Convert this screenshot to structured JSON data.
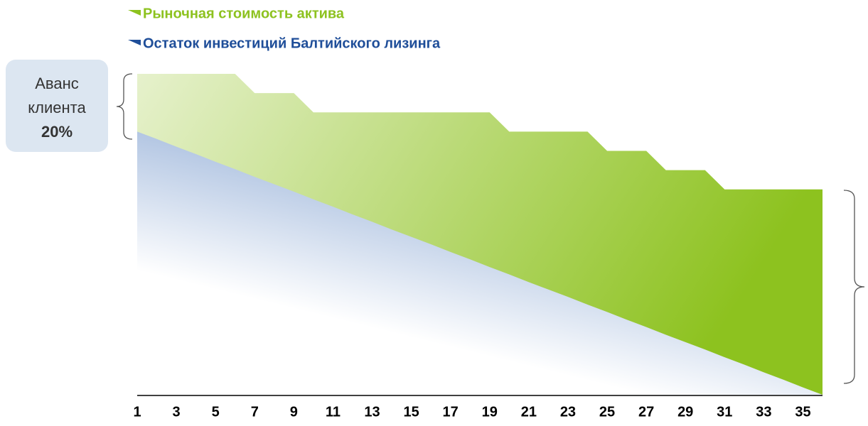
{
  "chart_data": {
    "type": "area",
    "categories": [
      1,
      null,
      3,
      null,
      5,
      null,
      7,
      null,
      9,
      null,
      11,
      null,
      13,
      null,
      15,
      null,
      17,
      null,
      19,
      null,
      21,
      null,
      23,
      null,
      25,
      null,
      27,
      null,
      29,
      null,
      31,
      null,
      33,
      null,
      35,
      null
    ],
    "series": [
      {
        "name": "Рыночная стоимость актива",
        "color": "#8dc21f",
        "values": [
          100,
          100,
          100,
          100,
          100,
          100,
          94,
          94,
          94,
          88,
          88,
          88,
          88,
          88,
          88,
          88,
          88,
          88,
          88,
          82,
          82,
          82,
          82,
          82,
          76,
          76,
          76,
          70,
          70,
          70,
          64,
          64,
          64,
          64,
          64,
          64
        ]
      },
      {
        "name": "Остаток инвестиций Балтийского лизинга",
        "color": "#1f4e99",
        "values": [
          82,
          79.7,
          77.3,
          75,
          72.6,
          70.3,
          67.9,
          65.6,
          63.3,
          60.9,
          58.6,
          56.2,
          53.9,
          51.5,
          49.2,
          46.9,
          44.5,
          42.2,
          39.8,
          37.5,
          35.1,
          32.8,
          30.5,
          28.1,
          25.8,
          23.4,
          21.1,
          18.7,
          16.4,
          14.1,
          11.7,
          9.4,
          7,
          4.7,
          2.3,
          0
        ]
      }
    ],
    "ylim": [
      0,
      100
    ],
    "annotation": {
      "line1": "Аванс",
      "line2": "клиента",
      "line3": "20%"
    }
  }
}
